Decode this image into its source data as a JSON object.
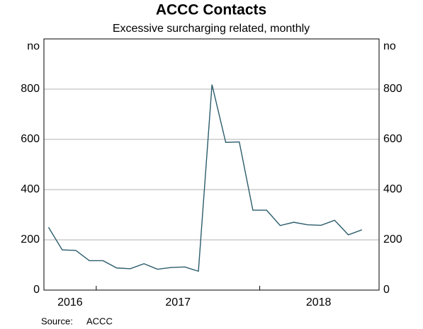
{
  "chart_data": {
    "type": "line",
    "title": "ACCC Contacts",
    "subtitle": "Excessive surcharging related, monthly",
    "y_unit": "no",
    "source_label": "Source:",
    "source": "ACCC",
    "x": [
      2016.708,
      2016.792,
      2016.875,
      2016.958,
      2017.042,
      2017.125,
      2017.208,
      2017.292,
      2017.375,
      2017.458,
      2017.542,
      2017.625,
      2017.708,
      2017.792,
      2017.875,
      2017.958,
      2018.042,
      2018.125,
      2018.208,
      2018.292,
      2018.375,
      2018.458,
      2018.542,
      2018.625
    ],
    "series": [
      {
        "name": "ACCC Contacts",
        "color": "#2b5c6b",
        "values": [
          250,
          160,
          158,
          117,
          117,
          88,
          85,
          105,
          83,
          90,
          92,
          75,
          818,
          588,
          590,
          318,
          318,
          257,
          270,
          260,
          258,
          278,
          220,
          240
        ]
      }
    ],
    "xlim": [
      2016.68,
      2018.73
    ],
    "year_boundaries": [
      2017,
      2018
    ],
    "xticks": [
      {
        "value": 2016.84,
        "label": "2016"
      },
      {
        "value": 2017.5,
        "label": "2017"
      },
      {
        "value": 2018.36,
        "label": "2018"
      }
    ],
    "ylim": [
      0,
      1000
    ],
    "yticks": [
      0,
      200,
      400,
      600,
      800
    ],
    "grid": true
  }
}
